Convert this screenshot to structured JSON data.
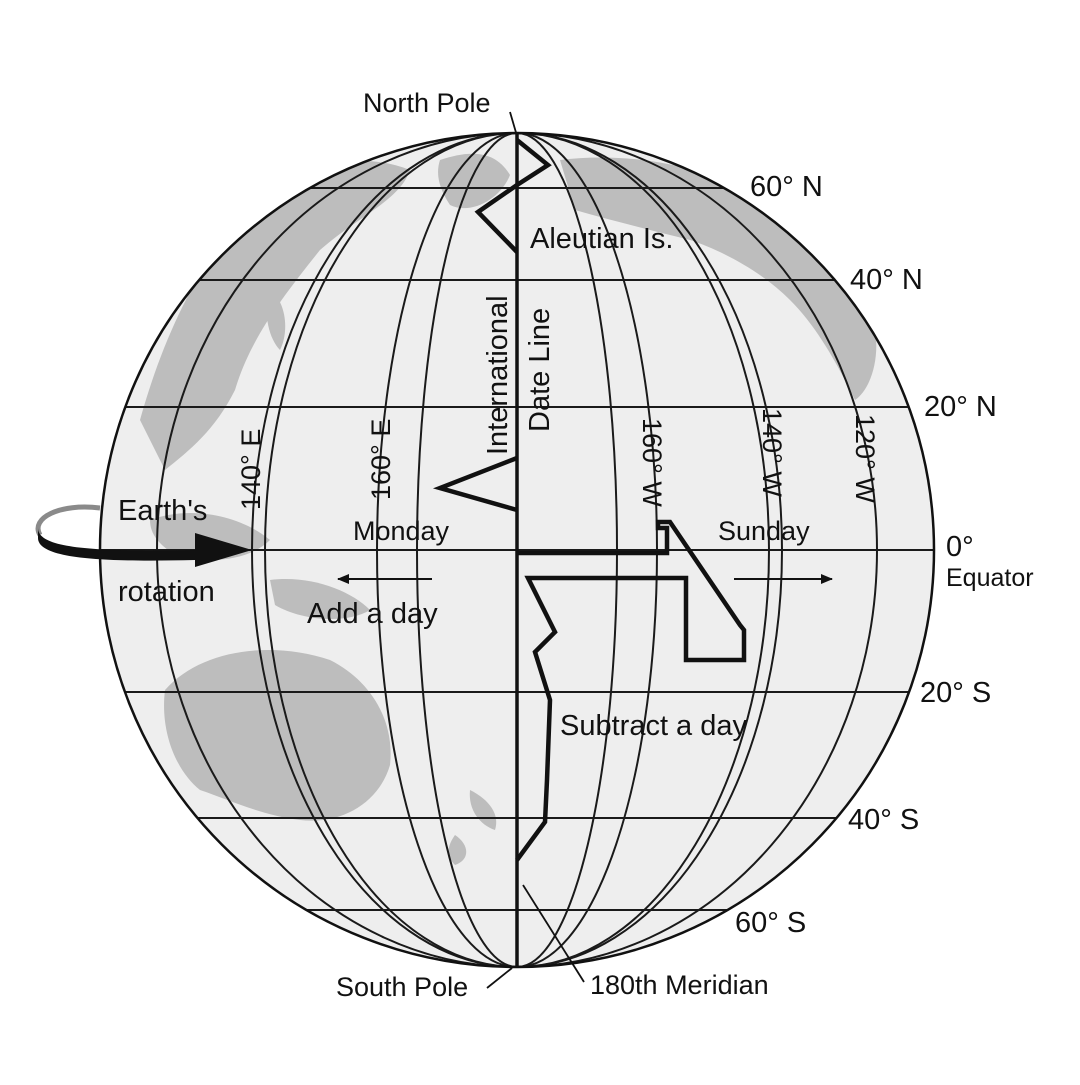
{
  "diagram": {
    "labels": {
      "north_pole": "North Pole",
      "south_pole": "South Pole",
      "meridian_180": "180th Meridian",
      "aleutian": "Aleutian Is.",
      "idl_line1": "International",
      "idl_line2": "Date Line",
      "earth_rotation_1": "Earth's",
      "earth_rotation_2": "rotation",
      "monday": "Monday",
      "sunday": "Sunday",
      "add_day": "Add a day",
      "subtract_day": "Subtract a day",
      "equator_deg": "0°",
      "equator": "Equator"
    },
    "latitudes": {
      "n60": "60° N",
      "n40": "40° N",
      "n20": "20° N",
      "s20": "20° S",
      "s40": "40° S",
      "s60": "60° S"
    },
    "longitudes": {
      "e140": "140° E",
      "e160": "160° E",
      "w160": "160° W",
      "w140": "140° W",
      "w120": "120° W"
    },
    "colors": {
      "ocean": "#eeeeee",
      "land": "#bdbdbd",
      "ink": "#111111"
    }
  }
}
